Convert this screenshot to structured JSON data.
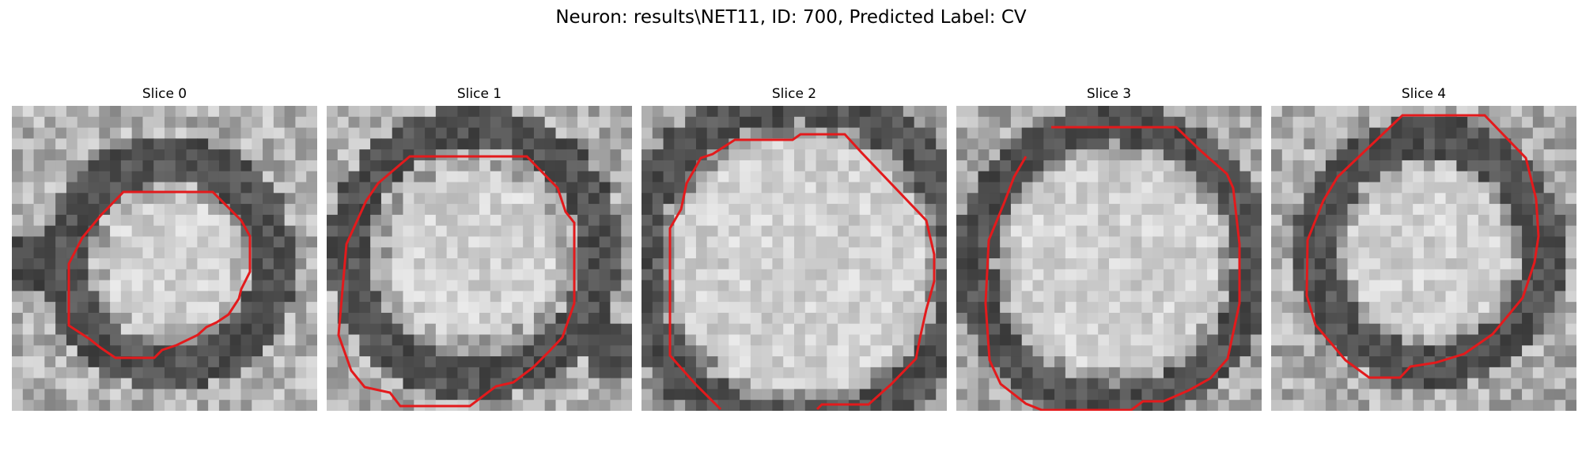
{
  "figure": {
    "title": "Neuron: results\\NET11, ID: 700, Predicted Label: CV",
    "contour_color": "#e31a1c",
    "colormap": "gray",
    "panels": [
      {
        "title": "Slice 0"
      },
      {
        "title": "Slice 1"
      },
      {
        "title": "Slice 2"
      },
      {
        "title": "Slice 3"
      },
      {
        "title": "Slice 4"
      }
    ]
  }
}
